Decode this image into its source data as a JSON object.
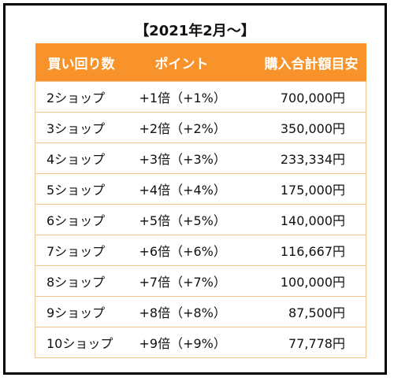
{
  "title": "【2021年2月～】",
  "headers": [
    "買い回り数",
    "ポイント",
    "購入合計額目安"
  ],
  "rows": [
    [
      "2ショップ",
      "+1倍（+1%）",
      "700,000円"
    ],
    [
      "3ショップ",
      "+2倍（+2%）",
      "350,000円"
    ],
    [
      "4ショップ",
      "+3倍（+3%）",
      "233,334円"
    ],
    [
      "5ショップ",
      "+4倍（+4%）",
      "175,000円"
    ],
    [
      "6ショップ",
      "+5倍（+5%）",
      "140,000円"
    ],
    [
      "7ショップ",
      "+6倍（+6%）",
      "116,667円"
    ],
    [
      "8ショップ",
      "+7倍（+7%）",
      "100,000円"
    ],
    [
      "9ショップ",
      "+8倍（+8%）",
      "87,500円"
    ],
    [
      "10ショップ",
      "+9倍（+9%）",
      "77,778円"
    ]
  ],
  "colors": {
    "header_bg": "#f7932a",
    "header_text": "#ffffff",
    "row_border": "#f3c48e",
    "frame": "#000000"
  }
}
